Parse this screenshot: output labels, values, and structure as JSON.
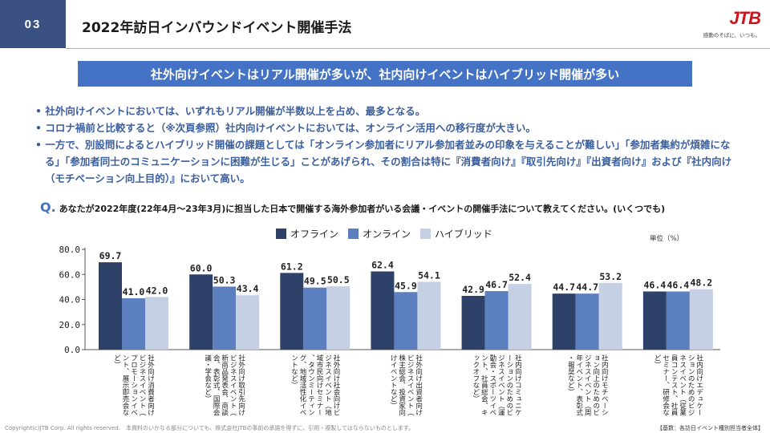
{
  "header": {
    "slide_number": "03",
    "title": "2022年訪日インバウンドイベント開催手法",
    "logo_text": "JTB",
    "logo_tagline": "感動のそばに、いつも。"
  },
  "banner": "社外向けイベントはリアル開催が多いが、社内向けイベントはハイブリッド開催が多い",
  "bullets": [
    "• 社外向けイベントにおいては、いずれもリアル開催が半数以上を占め、最多となる。",
    "• コロナ禍前と比較すると（※次頁参照）社内向けイベントにおいては、オンライン活用への移行度が大きい。",
    "• 一方で、別設問によるとハイブリッド開催の課題としては「オンライン参加者にリアル参加者並みの印象を与えることが難しい」「参加者集約が煩雑になる」「参加者同士のコミュニケーションに困難が生じる」ことがあげられ、その割合は特に『消費者向け』『取引先向け』『出資者向け』および『社内向け（モチベーション向上目的）』において高い。"
  ],
  "question": {
    "mark": "Q.",
    "text": "あなたが2022年度(22年4月～23年3月)に担当した日本で開催する海外参加者がいる会議・イベントの開催手法について教えてください。(いくつでも)"
  },
  "unit_label": "単位（%）",
  "colors": {
    "offline": "#2e4269",
    "online": "#5b7fbf",
    "hybrid": "#c5d0e4",
    "accent": "#4472c4",
    "slide_tag": "#3a4f82"
  },
  "chart_data": {
    "type": "bar",
    "categories": [
      "社外向け消費者向けビジネスイベント（プロモーションイベント、展示即売会など）",
      "社外向け取引先向けビジネスイベント（新商品発表会、商談会、表彰式、国際会議・学会など）",
      "社外向け社会向けビジネスイベント（地域市民向けセミナー、タウンミーティング、地域活性化イベントなど）",
      "社外向け出資者向けビジネスイベント（株主総会、投資家向けイベントなど）",
      "社内向けコミュニケーションのためのビジネスイベント（運動会・スポーツイベント、社員総会、キックオフなど）",
      "社内向けモチベーション向上のためのビジネスイベント（周年イベント、表彰式・報奨など）",
      "社内向けエデュケーションのためのビジネスイベント（従業員コンテスト、社員セミナー、研修会など）"
    ],
    "series": [
      {
        "name": "オフライン",
        "values": [
          69.7,
          60.0,
          61.2,
          62.4,
          42.9,
          44.7,
          46.4
        ]
      },
      {
        "name": "オンライン",
        "values": [
          41.0,
          50.3,
          49.5,
          45.9,
          46.7,
          44.7,
          46.4
        ]
      },
      {
        "name": "ハイブリッド",
        "values": [
          42.0,
          43.4,
          50.5,
          54.1,
          52.4,
          53.2,
          48.2
        ]
      }
    ],
    "ylim": [
      0,
      80
    ],
    "yticks": [
      "0.0",
      "20.0",
      "40.0",
      "60.0",
      "80.0"
    ],
    "grid": false,
    "legend": "top-center"
  },
  "footer": "Copyright(c)JTB Corp. All rights reserved.　本資料のいかなる部分についても、株式会社JTBの事前の承諾を得ずに、引用・複製してはならないものとします。",
  "source": "【基数：各訪日イベント種別担当者全体】"
}
